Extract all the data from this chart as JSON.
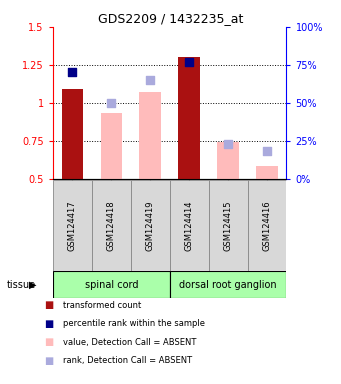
{
  "title": "GDS2209 / 1432235_at",
  "samples": [
    "GSM124417",
    "GSM124418",
    "GSM124419",
    "GSM124414",
    "GSM124415",
    "GSM124416"
  ],
  "bar_values": [
    1.09,
    null,
    null,
    1.3,
    null,
    null
  ],
  "bar_values_absent": [
    null,
    0.93,
    1.07,
    null,
    0.74,
    0.58
  ],
  "rank_values": [
    70,
    null,
    null,
    77,
    null,
    null
  ],
  "rank_values_absent": [
    null,
    50,
    65,
    null,
    23,
    18
  ],
  "ylim": [
    0.5,
    1.5
  ],
  "yticks": [
    0.5,
    0.75,
    1.0,
    1.25,
    1.5
  ],
  "ytick_labels": [
    "0.5",
    "0.75",
    "1",
    "1.25",
    "1.5"
  ],
  "y2lim": [
    0,
    100
  ],
  "y2ticks": [
    0,
    25,
    50,
    75,
    100
  ],
  "y2tick_labels": [
    "0%",
    "25%",
    "50%",
    "75%",
    "100%"
  ],
  "bar_color_present": "#aa1111",
  "bar_color_absent": "#ffbbbb",
  "rank_color_present": "#000088",
  "rank_color_absent": "#aaaadd",
  "tissue_color": "#aaffaa",
  "bar_width": 0.55,
  "rank_marker_size": 28,
  "grid_lines": [
    0.75,
    1.0,
    1.25
  ],
  "tissue_groups": [
    {
      "label": "spinal cord",
      "start": 0,
      "end": 2
    },
    {
      "label": "dorsal root ganglion",
      "start": 3,
      "end": 5
    }
  ],
  "legend_items": [
    {
      "color": "#aa1111",
      "label": "transformed count"
    },
    {
      "color": "#000088",
      "label": "percentile rank within the sample"
    },
    {
      "color": "#ffbbbb",
      "label": "value, Detection Call = ABSENT"
    },
    {
      "color": "#aaaadd",
      "label": "rank, Detection Call = ABSENT"
    }
  ]
}
